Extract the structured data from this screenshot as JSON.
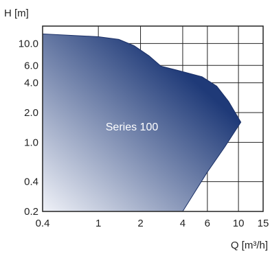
{
  "chart_data": {
    "type": "area",
    "title": "",
    "xlabel": "Q [m³/h]",
    "ylabel": "H [m]",
    "x_scale": "log",
    "y_scale": "log",
    "xlim": [
      0.4,
      15
    ],
    "ylim": [
      0.2,
      15
    ],
    "grid": true,
    "x_ticks": [
      {
        "value": 0.4,
        "label": "0.4"
      },
      {
        "value": 1,
        "label": "1"
      },
      {
        "value": 2,
        "label": "2"
      },
      {
        "value": 4,
        "label": "4"
      },
      {
        "value": 6,
        "label": "6"
      },
      {
        "value": 10,
        "label": "10"
      },
      {
        "value": 15,
        "label": "15"
      }
    ],
    "y_ticks": [
      {
        "value": 0.2,
        "label": "0.2"
      },
      {
        "value": 0.4,
        "label": "0.4"
      },
      {
        "value": 1.0,
        "label": "1.0"
      },
      {
        "value": 2.0,
        "label": "2.0"
      },
      {
        "value": 4.0,
        "label": "4.0"
      },
      {
        "value": 6.0,
        "label": "6.0"
      },
      {
        "value": 10.0,
        "label": "10.0"
      }
    ],
    "series": [
      {
        "name": "Series 100",
        "color_dark": "#1f3a78",
        "color_light": "#f0f2f8",
        "outline": [
          {
            "x": 0.4,
            "y": 0.2
          },
          {
            "x": 0.4,
            "y": 12.5
          },
          {
            "x": 1.0,
            "y": 11.7
          },
          {
            "x": 1.4,
            "y": 11.0
          },
          {
            "x": 1.8,
            "y": 9.5
          },
          {
            "x": 2.3,
            "y": 7.5
          },
          {
            "x": 2.8,
            "y": 5.9
          },
          {
            "x": 4.0,
            "y": 5.2
          },
          {
            "x": 5.5,
            "y": 4.6
          },
          {
            "x": 7.0,
            "y": 3.7
          },
          {
            "x": 8.5,
            "y": 2.6
          },
          {
            "x": 10.4,
            "y": 1.6
          },
          {
            "x": 8.0,
            "y": 0.9
          },
          {
            "x": 6.0,
            "y": 0.5
          },
          {
            "x": 4.0,
            "y": 0.2
          }
        ]
      }
    ]
  }
}
